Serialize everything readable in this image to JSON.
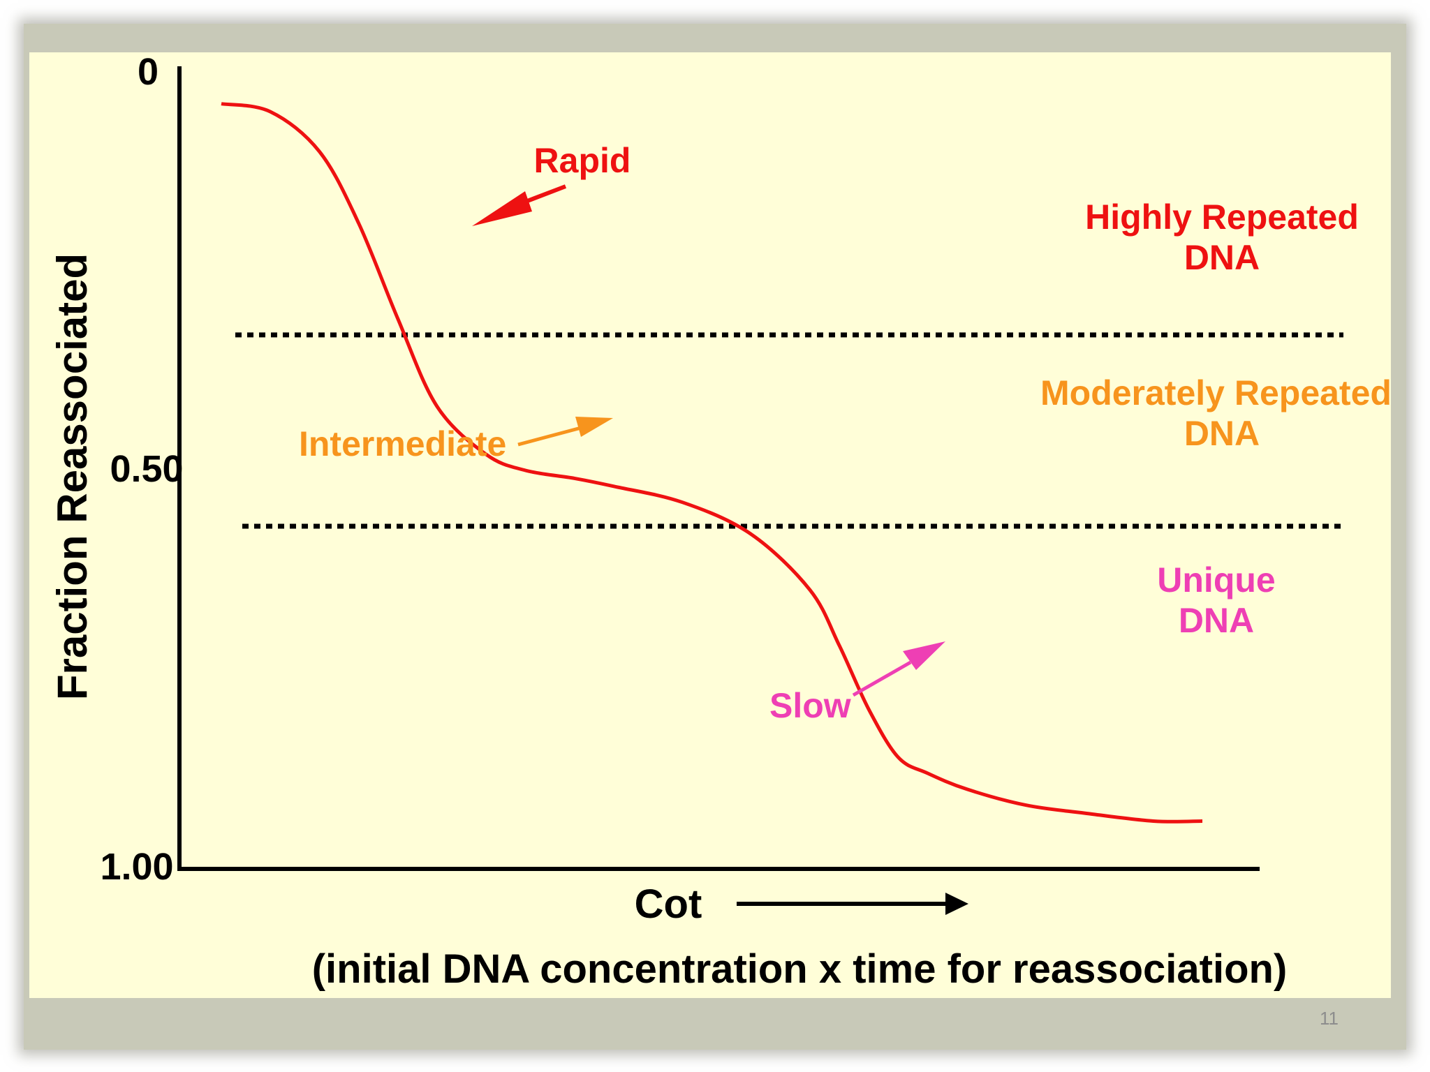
{
  "colors": {
    "background": "#fffed8",
    "curve": "#ee1111",
    "axis": "#000000",
    "rapid": "#ee1111",
    "intermediate": "#f7941d",
    "slow": "#ee3fb4",
    "page_number": "#8d8d8d"
  },
  "chart_data": {
    "type": "line",
    "title": "",
    "xlabel": "Cot",
    "xlabel_note": "(initial DNA concentration x time for reassociation)",
    "ylabel": "Fraction Reassociated",
    "y_ticks": [
      "0",
      "0.50",
      "1.00"
    ],
    "ylim": [
      0,
      1.0
    ],
    "y_inverted": true,
    "x_scale": "log",
    "x_ticks_shown": false,
    "grid": false,
    "legend": "none",
    "series": [
      {
        "values_x_relative": [
          0.0,
          0.05,
          0.1,
          0.14,
          0.18,
          0.22,
          0.27,
          0.31,
          0.36,
          0.4,
          0.47,
          0.54,
          0.6,
          0.63,
          0.66,
          0.69,
          0.72,
          0.76,
          0.82,
          0.88,
          0.95,
          1.0
        ],
        "values_y": [
          0.04,
          0.05,
          0.1,
          0.19,
          0.31,
          0.42,
          0.48,
          0.5,
          0.51,
          0.52,
          0.54,
          0.58,
          0.65,
          0.72,
          0.8,
          0.86,
          0.88,
          0.9,
          0.92,
          0.93,
          0.94,
          0.94
        ]
      }
    ],
    "thresholds": [
      0.33,
      0.57
    ],
    "regions": [
      {
        "lines": [
          "Highly Repeated",
          "DNA"
        ],
        "color": "#ee1111"
      },
      {
        "lines": [
          "Moderately Repeated",
          "DNA"
        ],
        "color": "#f7941d"
      },
      {
        "lines": [
          "Unique",
          "DNA"
        ],
        "color": "#ee3fb4"
      }
    ],
    "annotations": [
      {
        "label": "Rapid",
        "color": "#ee1111"
      },
      {
        "label": "Intermediate",
        "color": "#f7941d"
      },
      {
        "label": "Slow",
        "color": "#ee3fb4"
      }
    ]
  },
  "page_number": "11"
}
